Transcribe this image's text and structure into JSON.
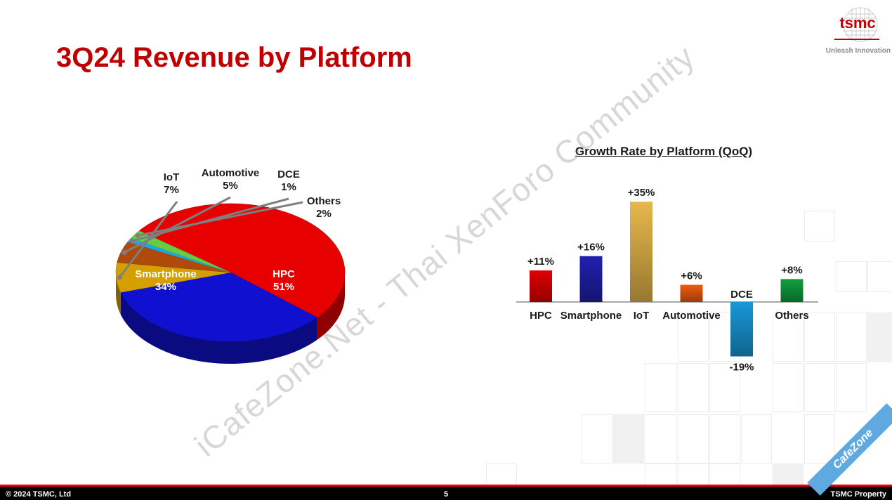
{
  "slide": {
    "title": "3Q24 Revenue by Platform"
  },
  "brand": {
    "logo_text": "tsmc",
    "tagline": "Unleash Innovation",
    "color": "#c00000"
  },
  "watermark": {
    "text": "iCafeZone.Net - Thai XenForo Community",
    "ribbon": "CafeZone"
  },
  "footer": {
    "copyright": "© 2024 TSMC, Ltd",
    "page_number": "5",
    "property": "TSMC Property"
  },
  "chart_data": [
    {
      "type": "pie",
      "title": "",
      "slices": [
        {
          "name": "HPC",
          "value": 51,
          "label": "51%",
          "color": "#e60000"
        },
        {
          "name": "Smartphone",
          "value": 34,
          "label": "34%",
          "color": "#1010d0"
        },
        {
          "name": "IoT",
          "value": 7,
          "label": "7%",
          "color": "#d4a000"
        },
        {
          "name": "Automotive",
          "value": 5,
          "label": "5%",
          "color": "#b04a0a"
        },
        {
          "name": "DCE",
          "value": 1,
          "label": "1%",
          "color": "#1aa8e8"
        },
        {
          "name": "Others",
          "value": 2,
          "label": "2%",
          "color": "#66cc44"
        }
      ]
    },
    {
      "type": "bar",
      "title": "Growth Rate by Platform (QoQ)",
      "categories": [
        "HPC",
        "Smartphone",
        "IoT",
        "Automotive",
        "DCE",
        "Others"
      ],
      "values": [
        11,
        16,
        35,
        6,
        -19,
        8
      ],
      "labels": [
        "+11%",
        "+16%",
        "+35%",
        "+6%",
        "-19%",
        "+8%"
      ],
      "colors": [
        "#e10000",
        "#2020b0",
        "#e8b84c",
        "#ee5c10",
        "#1898d8",
        "#10a040"
      ],
      "xlabel": "",
      "ylabel": ""
    }
  ]
}
